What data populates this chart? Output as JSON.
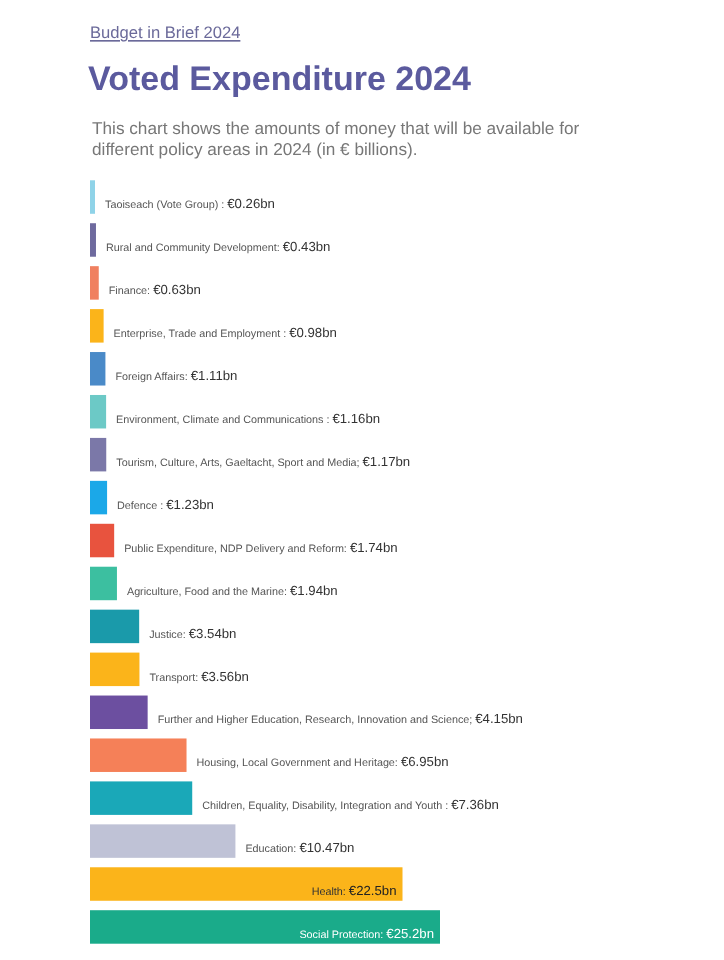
{
  "chart_data": {
    "type": "bar",
    "orientation": "horizontal",
    "annotations": [
      "Budget in Brief 2024"
    ],
    "title": "Voted Expenditure 2024",
    "subtitle": "This chart shows the amounts of money that will be available for different policy areas in 2024 (in € billions).",
    "categories": [
      null,
      null,
      null,
      null,
      null,
      null,
      null,
      null,
      null,
      null,
      null,
      null,
      null,
      null,
      null,
      null,
      null,
      null
    ],
    "values": [
      0.26,
      0.43,
      0.63,
      0.98,
      1.11,
      1.16,
      1.17,
      1.23,
      1.74,
      1.94,
      3.54,
      3.56,
      4.15,
      6.95,
      7.36,
      10.47,
      22.5,
      25.2
    ],
    "value_labels": [
      "Taoiseach (Vote Group) : €0.26bn",
      "Rural and Community Development: €0.43bn",
      "Finance: €0.63bn",
      "Enterprise, Trade and Employment : €0.98bn",
      "Foreign Affairs: €1.11bn",
      "Environment, Climate and Communications : €1.16bn",
      "Tourism, Culture, Arts, Gaeltacht, Sport and Media; €1.17bn",
      "Defence : €1.23bn",
      "Public Expenditure, NDP Delivery and Reform: €1.74bn",
      "Agriculture, Food and the Marine: €1.94bn",
      "Justice: €3.54bn",
      "Transport: €3.56bn",
      "Further and Higher Education, Research, Innovation and Science; €4.15bn",
      "Housing, Local Government and Heritage: €6.95bn",
      "Children, Equality, Disability, Integration and Youth : €7.36bn",
      "Education: €10.47bn",
      "Health: €22.5bn",
      "Social Protection: €25.2bn"
    ],
    "colors": [
      "#8fd3e8",
      "#6e6a9e",
      "#f08060",
      "#fbb41a",
      "#4a8ac8",
      "#6cc9c6",
      "#7b78a8",
      "#1ba8e8",
      "#e8533e",
      "#3cbfa0",
      "#1a9aaa",
      "#fbb41a",
      "#6c4fa0",
      "#f58058",
      "#1aa8b8",
      "#bfc2d6",
      "#fbb41a",
      "#1aab8a"
    ],
    "xlim": [
      0,
      25.2
    ]
  }
}
